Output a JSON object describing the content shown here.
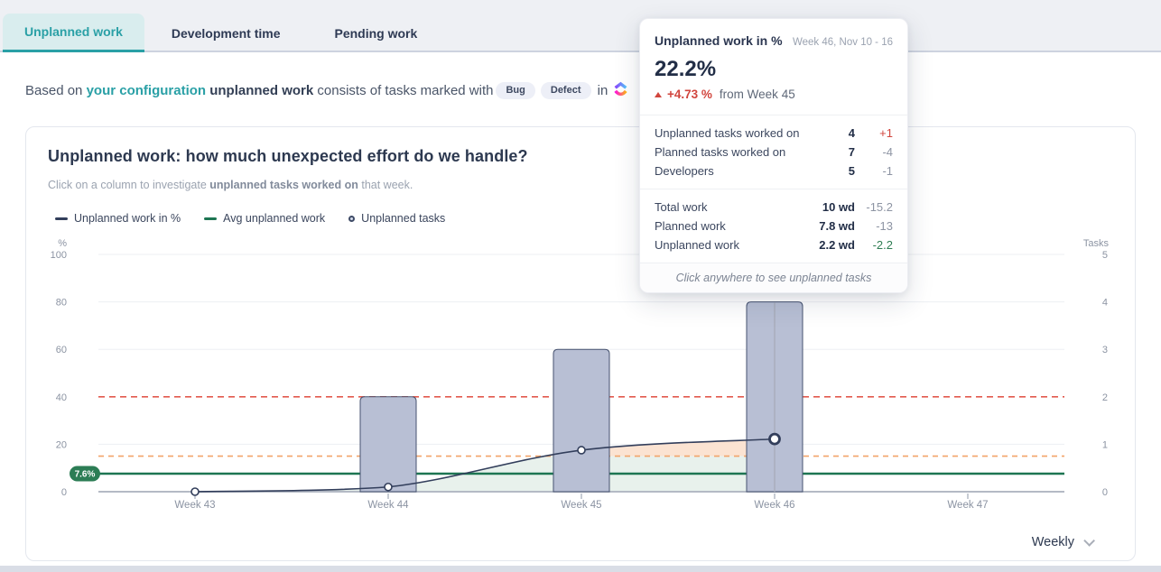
{
  "tabs": [
    {
      "label": "Unplanned work",
      "active": true
    },
    {
      "label": "Development time",
      "active": false
    },
    {
      "label": "Pending work",
      "active": false
    }
  ],
  "description": {
    "prefix": "Based on ",
    "link": "your configuration",
    "bold": " unplanned work ",
    "middle": "consists of tasks marked with",
    "badges": [
      "Bug",
      "Defect"
    ],
    "suffix": " in",
    "app_icon": "clickup-logo"
  },
  "card": {
    "title": "Unplanned work: how much unexpected effort do we handle?",
    "subtitle_prefix": "Click on a column to investigate ",
    "subtitle_bold": "unplanned tasks worked on",
    "subtitle_suffix": " that week.",
    "legend": [
      {
        "label": "Unplanned work in %",
        "marker": "line",
        "color": "#323e5b"
      },
      {
        "label": "Avg unplanned work",
        "marker": "line",
        "color": "#1d7552"
      },
      {
        "label": "Unplanned tasks",
        "marker": "circle",
        "color": "#3e4a66"
      }
    ],
    "period_selector": "Weekly"
  },
  "tooltip": {
    "title": "Unplanned work in %",
    "period": "Week 46, Nov 10 - 16",
    "value": "22.2%",
    "delta": "+4.73 %",
    "delta_direction": "up",
    "delta_suffix": "from Week 45",
    "rows": [
      {
        "label": "Unplanned tasks worked on",
        "value": "4",
        "delta": "+1",
        "delta_color": "red"
      },
      {
        "label": "Planned tasks worked on",
        "value": "7",
        "delta": "-4",
        "delta_color": "gray"
      },
      {
        "label": "Developers",
        "value": "5",
        "delta": "-1",
        "delta_color": "gray"
      },
      {
        "label": "Total work",
        "value": "10 wd",
        "delta": "-15.2",
        "delta_color": "gray"
      },
      {
        "label": "Planned work",
        "value": "7.8 wd",
        "delta": "-13",
        "delta_color": "gray"
      },
      {
        "label": "Unplanned work",
        "value": "2.2 wd",
        "delta": "-2.2",
        "delta_color": "green"
      }
    ],
    "footer": "Click anywhere to see unplanned tasks"
  },
  "chart_data": {
    "type": "combo bar+line",
    "x": [
      "Week 43",
      "Week 44",
      "Week 45",
      "Week 46",
      "Week 47"
    ],
    "series": [
      {
        "name": "Unplanned work in %",
        "type": "line",
        "axis": "left",
        "values": [
          0,
          2,
          17.5,
          22.2,
          null
        ],
        "color": "#323e5b",
        "area_fill_below_threshold": "#e8f1ec",
        "area_fill_above_threshold": "#fbe3d2"
      },
      {
        "name": "Unplanned tasks",
        "type": "bar",
        "axis": "right",
        "values": [
          0,
          2,
          3,
          4,
          null
        ],
        "fill": "#b8bfd4",
        "stroke": "#46526f"
      },
      {
        "name": "Avg unplanned work",
        "type": "reference-line",
        "axis": "left",
        "value": 7.6,
        "label": "7.6%",
        "color": "#1d7552",
        "badge_fill": "#2c7d55"
      }
    ],
    "thresholds": [
      {
        "value": 40,
        "color": "#e25a4e",
        "style": "dashed"
      },
      {
        "value": 15,
        "color": "#f2a469",
        "style": "dashed"
      }
    ],
    "left_axis": {
      "label": "%",
      "ticks": [
        0,
        20,
        40,
        60,
        80,
        100
      ],
      "range": [
        0,
        100
      ]
    },
    "right_axis": {
      "label": "Tasks",
      "ticks": [
        0,
        1,
        2,
        3,
        4,
        5
      ],
      "range": [
        0,
        5
      ]
    },
    "highlight_index": 3,
    "legend_position": "top-left",
    "grid": "horizontal"
  }
}
